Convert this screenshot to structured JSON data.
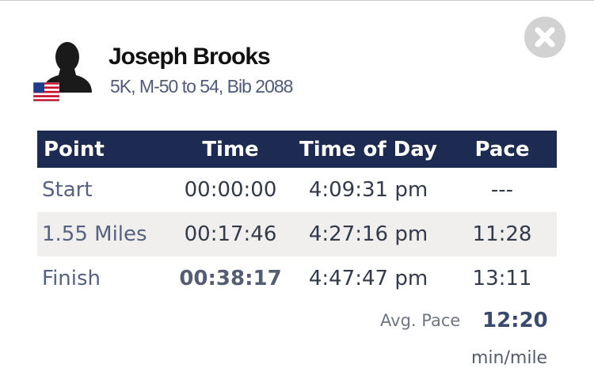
{
  "runner": {
    "name": "Joseph Brooks",
    "details": "5K, M-50 to 54, Bib 2088",
    "avatar_icon": "person-silhouette-icon",
    "flag_icon": "us-flag-icon"
  },
  "close_icon": "close-icon",
  "table": {
    "headers": [
      "Point",
      "Time",
      "Time of Day",
      "Pace"
    ],
    "rows": [
      {
        "point": "Start",
        "time": "00:00:00",
        "time_of_day": "4:09:31 pm",
        "pace": "---"
      },
      {
        "point": "1.55 Miles",
        "time": "00:17:46",
        "time_of_day": "4:27:16 pm",
        "pace": "11:28"
      },
      {
        "point": "Finish",
        "time": "00:38:17",
        "time_of_day": "4:47:47 pm",
        "pace": "13:11"
      }
    ]
  },
  "summary": {
    "avg_pace_label": "Avg. Pace",
    "avg_pace_value": "12:20",
    "pace_unit": "min/mile"
  },
  "colors": {
    "header_bg": "#1d2b53",
    "row_shade": "#f0efed",
    "close_bg": "#d2d2d2"
  }
}
